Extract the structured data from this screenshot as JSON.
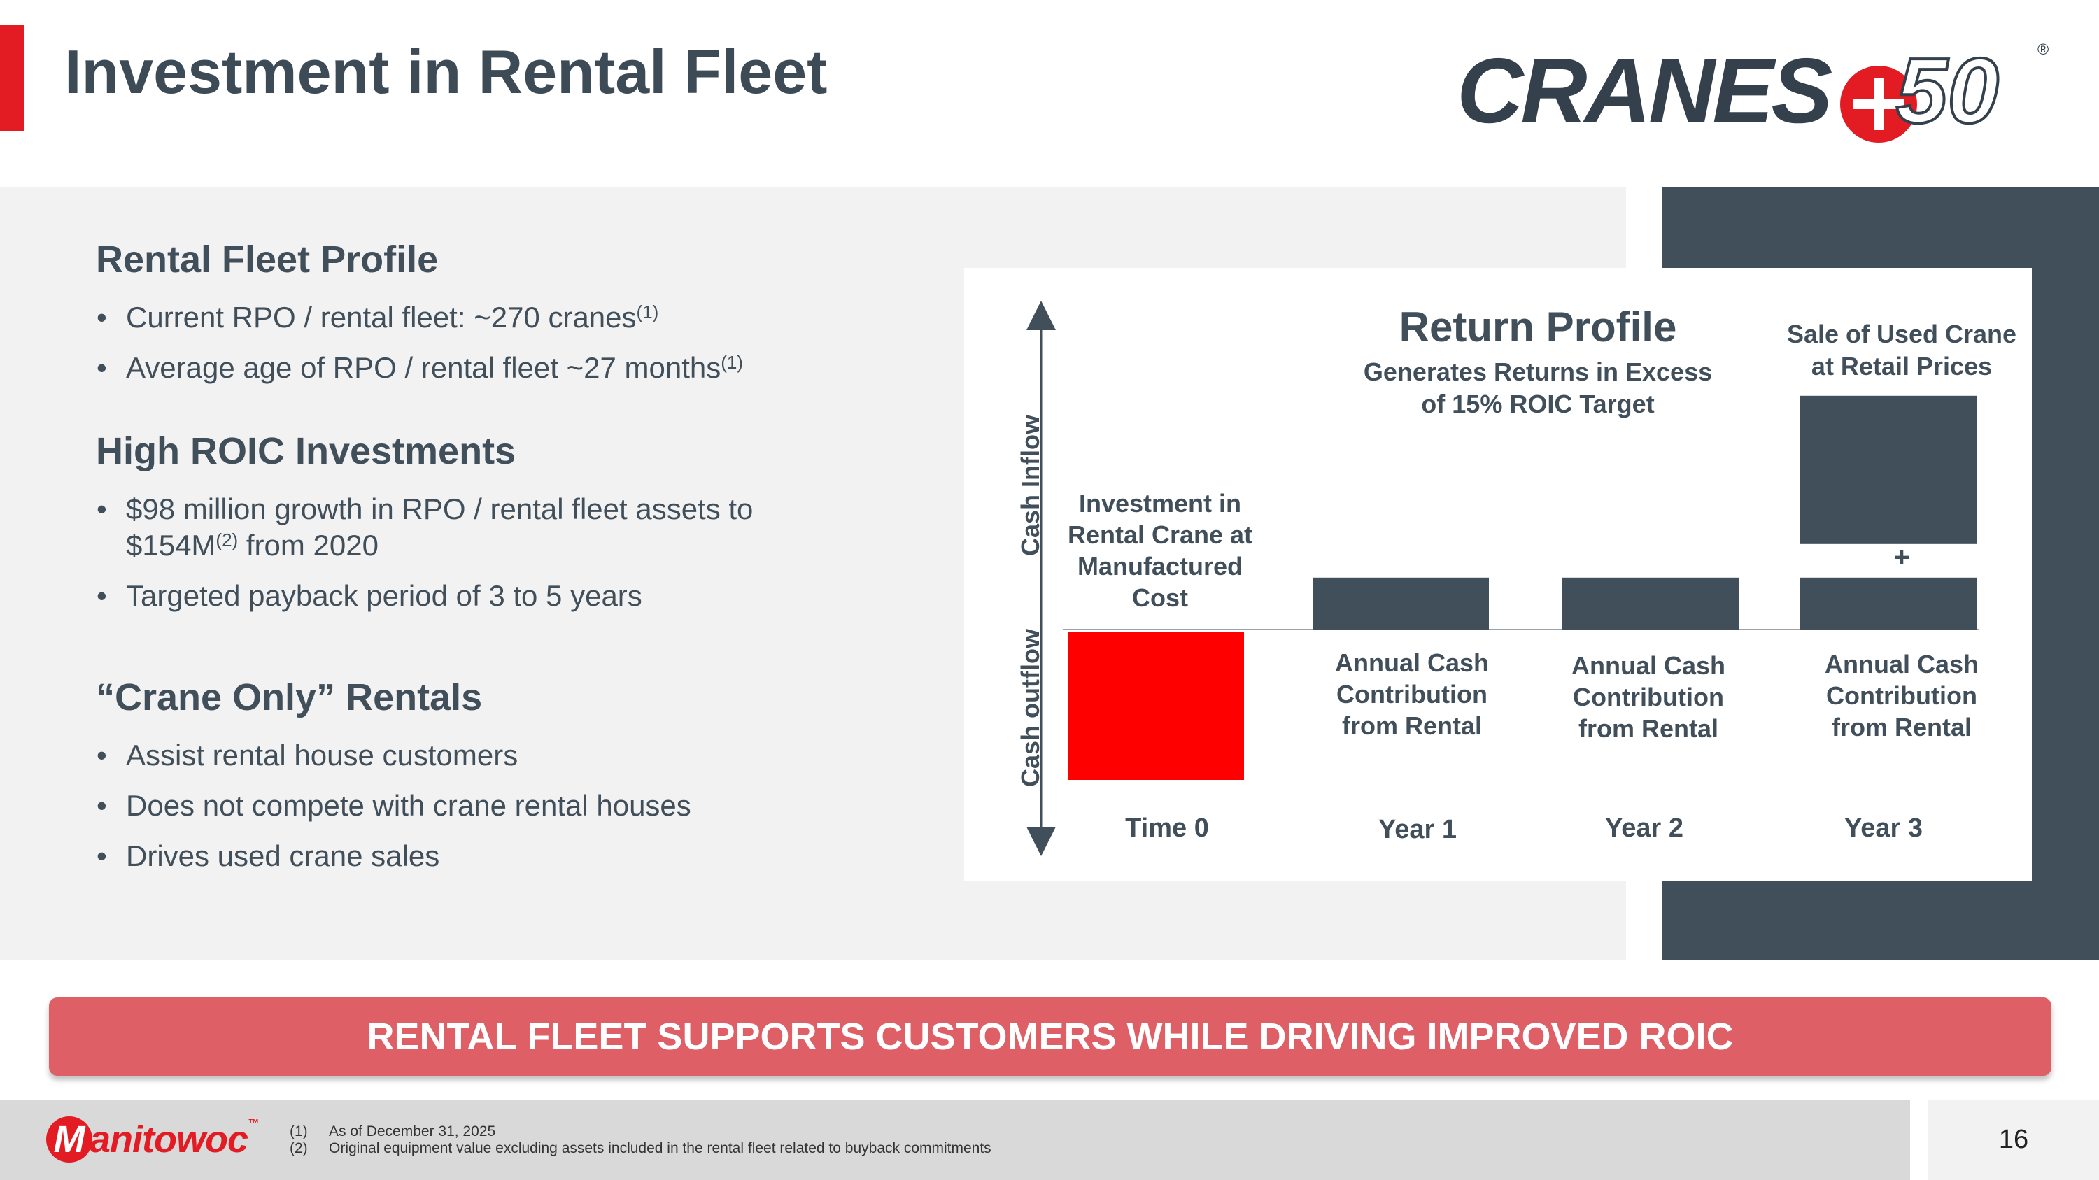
{
  "header": {
    "title": "Investment in Rental Fleet",
    "logo_text": "CRANES",
    "logo_number": "50",
    "logo_registered": "®"
  },
  "sections": [
    {
      "title": "Rental Fleet Profile",
      "bullets": [
        {
          "text": "Current RPO / rental fleet: ~270 cranes",
          "sup": "(1)"
        },
        {
          "text": "Average age of RPO / rental fleet ~27 months",
          "sup": "(1)"
        }
      ]
    },
    {
      "title": "High ROIC Investments",
      "bullets": [
        {
          "line1": "$98 million growth in RPO / rental fleet assets to",
          "line2_pre": "$154M",
          "sup": "(2)",
          "line2_post": " from 2020"
        },
        {
          "text": "Targeted payback period of 3 to 5 years"
        }
      ]
    },
    {
      "title": "“Crane Only” Rentals",
      "bullets": [
        {
          "text": "Assist rental house customers"
        },
        {
          "text": "Does not compete with crane rental houses"
        },
        {
          "text": "Drives used crane sales"
        }
      ]
    }
  ],
  "chart_data": {
    "type": "bar",
    "title": "Return Profile",
    "subtitle_line1": "Generates Returns in Excess",
    "subtitle_line2": "of 15% ROIC Target",
    "ylabel_positive": "Cash Inflow",
    "ylabel_negative": "Cash outflow",
    "categories": [
      "Time 0",
      "Year 1",
      "Year 2",
      "Year 3"
    ],
    "colors": {
      "outflow": "#ff0000",
      "inflow": "#414f5b"
    },
    "bars": [
      {
        "category": "Time 0",
        "value": -1,
        "label": [
          "Investment in",
          "Rental Crane at",
          "Manufactured",
          "Cost"
        ]
      },
      {
        "category": "Year 1",
        "value": 0.35,
        "label": [
          "Annual Cash",
          "Contribution",
          "from Rental"
        ]
      },
      {
        "category": "Year 2",
        "value": 0.35,
        "label": [
          "Annual Cash",
          "Contribution",
          "from Rental"
        ]
      },
      {
        "category": "Year 3",
        "value": 0.35,
        "label": [
          "Annual Cash",
          "Contribution",
          "from Rental"
        ],
        "stack_value": 1.0,
        "stack_label": [
          "Sale of Used Crane",
          "at Retail Prices"
        ],
        "stack_symbol": "+"
      }
    ]
  },
  "banner": {
    "text": "RENTAL FLEET SUPPORTS CUSTOMERS WHILE DRIVING IMPROVED ROIC",
    "color": "#de5f66"
  },
  "footer": {
    "brand_initial": "M",
    "brand_rest": "anitowoc",
    "brand_tm": "™",
    "notes": [
      {
        "num": "(1)",
        "text": "As of December 31, 2025"
      },
      {
        "num": "(2)",
        "text": "Original equipment value excluding assets included in the rental fleet related to buyback commitments"
      }
    ],
    "page_number": "16"
  }
}
